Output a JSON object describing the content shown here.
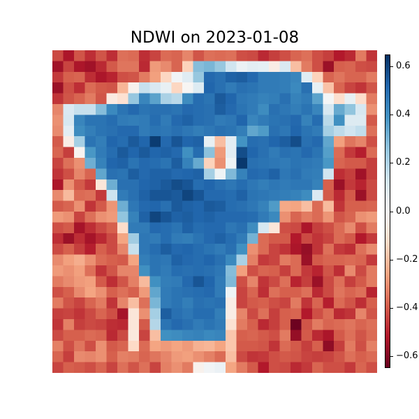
{
  "chart_data": {
    "type": "heatmap",
    "title": "NDWI on 2023-01-08",
    "colormap": "RdBu",
    "vmin": -0.65,
    "vmax": 0.65,
    "rows": 30,
    "cols": 30,
    "colorbar": {
      "ticks": [
        0.6,
        0.4,
        0.2,
        0.0,
        -0.2,
        -0.4,
        -0.6
      ],
      "tick_labels": [
        "0.6",
        "0.4",
        "0.2",
        "0.0",
        "−0.2",
        "−0.4",
        "−0.6"
      ]
    },
    "values": [
      [
        -0.43,
        -0.53,
        -0.41,
        -0.48,
        -0.41,
        -0.48,
        -0.36,
        -0.37,
        -0.48,
        -0.44,
        -0.37,
        -0.38,
        -0.32,
        -0.41,
        -0.36,
        -0.37,
        -0.36,
        -0.42,
        -0.43,
        -0.49,
        -0.45,
        -0.42,
        -0.38,
        -0.36,
        -0.42,
        -0.45,
        -0.52,
        -0.49,
        -0.34,
        -0.47
      ],
      [
        -0.55,
        -0.44,
        -0.53,
        -0.55,
        -0.49,
        -0.4,
        -0.35,
        -0.35,
        -0.49,
        -0.28,
        -0.31,
        -0.38,
        -0.15,
        0.28,
        0.3,
        0.25,
        0.13,
        0.04,
        0.07,
        0.06,
        -0.05,
        0.1,
        -0.2,
        -0.34,
        -0.42,
        -0.56,
        -0.39,
        -0.38,
        -0.42,
        -0.43
      ],
      [
        -0.46,
        -0.39,
        -0.38,
        -0.48,
        -0.53,
        -0.5,
        -0.42,
        -0.41,
        -0.34,
        -0.27,
        -0.14,
        0.02,
        0.08,
        0.25,
        0.51,
        0.49,
        0.53,
        0.54,
        0.51,
        0.46,
        0.46,
        0.45,
        0.43,
        0.08,
        -0.15,
        -0.38,
        -0.35,
        -0.38,
        -0.38,
        -0.34
      ],
      [
        -0.56,
        -0.42,
        -0.48,
        -0.37,
        -0.4,
        -0.41,
        -0.22,
        -0.03,
        0.15,
        0.1,
        0.05,
        -0.14,
        -0.01,
        0.09,
        0.52,
        0.49,
        0.46,
        0.49,
        0.48,
        0.46,
        0.46,
        0.45,
        0.42,
        0.49,
        0.05,
        -0.19,
        -0.38,
        -0.44,
        -0.47,
        -0.41
      ],
      [
        -0.47,
        -0.41,
        -0.38,
        -0.34,
        -0.41,
        -0.06,
        -0.1,
        0.25,
        0.43,
        0.35,
        0.21,
        0.18,
        0.41,
        0.5,
        0.48,
        0.55,
        0.52,
        0.47,
        0.46,
        0.44,
        0.45,
        0.49,
        0.44,
        0.46,
        0.35,
        0.01,
        -0.11,
        0.05,
        -0.12,
        -0.34
      ],
      [
        -0.32,
        0.1,
        0.15,
        0.15,
        0.28,
        0.42,
        0.48,
        0.51,
        0.48,
        0.49,
        0.49,
        0.48,
        0.51,
        0.5,
        0.49,
        0.54,
        0.51,
        0.48,
        0.46,
        0.41,
        0.49,
        0.47,
        0.45,
        0.48,
        0.43,
        0.11,
        0.33,
        0.26,
        0.11,
        -0.3
      ],
      [
        -0.3,
        0.11,
        0.43,
        0.48,
        0.48,
        0.5,
        0.46,
        0.45,
        0.46,
        0.5,
        0.46,
        0.51,
        0.53,
        0.5,
        0.49,
        0.46,
        0.47,
        0.52,
        0.43,
        0.46,
        0.48,
        0.49,
        0.51,
        0.44,
        0.5,
        0.18,
        0.4,
        0.09,
        0.09,
        -0.4
      ],
      [
        -0.31,
        0.07,
        0.41,
        0.45,
        0.48,
        0.49,
        0.51,
        0.51,
        0.46,
        0.48,
        0.47,
        0.49,
        0.47,
        0.45,
        0.47,
        0.49,
        0.48,
        0.45,
        0.34,
        0.37,
        0.49,
        0.47,
        0.52,
        0.48,
        0.46,
        0.22,
        0.17,
        0.13,
        0.16,
        -0.36
      ],
      [
        -0.4,
        -0.05,
        0.22,
        0.48,
        0.45,
        0.52,
        0.5,
        0.55,
        0.52,
        0.62,
        0.51,
        0.56,
        0.52,
        0.53,
        0.05,
        -0.2,
        0.07,
        0.39,
        0.5,
        0.49,
        0.52,
        0.54,
        0.58,
        0.49,
        0.51,
        0.34,
        -0.27,
        -0.35,
        -0.32,
        -0.42
      ],
      [
        -0.38,
        -0.45,
        -0.02,
        0.38,
        0.46,
        0.5,
        0.55,
        0.52,
        0.55,
        0.52,
        0.53,
        0.51,
        0.4,
        0.5,
        0.27,
        -0.28,
        0.07,
        0.58,
        0.52,
        0.49,
        0.46,
        0.49,
        0.48,
        0.51,
        0.48,
        0.36,
        -0.37,
        -0.46,
        -0.51,
        -0.37
      ],
      [
        -0.44,
        -0.36,
        -0.3,
        0.32,
        0.44,
        0.52,
        0.53,
        0.48,
        0.51,
        0.5,
        0.48,
        0.54,
        0.44,
        0.33,
        -0.15,
        -0.3,
        0.03,
        0.63,
        0.49,
        0.48,
        0.47,
        0.46,
        0.48,
        0.47,
        0.46,
        0.38,
        -0.38,
        -0.4,
        -0.4,
        -0.45
      ],
      [
        -0.47,
        -0.42,
        -0.32,
        -0.38,
        0.34,
        0.49,
        0.48,
        0.54,
        0.51,
        0.53,
        0.53,
        0.51,
        0.52,
        0.53,
        0.22,
        0.03,
        0.29,
        0.44,
        0.51,
        0.5,
        0.53,
        0.47,
        0.49,
        0.46,
        0.45,
        0.13,
        -0.48,
        -0.45,
        -0.55,
        -0.45
      ],
      [
        -0.53,
        -0.3,
        -0.4,
        -0.46,
        -0.08,
        0.32,
        0.49,
        0.49,
        0.52,
        0.53,
        0.55,
        0.58,
        0.56,
        0.5,
        0.52,
        0.49,
        0.47,
        0.5,
        0.47,
        0.45,
        0.47,
        0.46,
        0.47,
        0.47,
        0.44,
        -0.39,
        -0.56,
        -0.46,
        -0.5,
        -0.43
      ],
      [
        -0.31,
        -0.21,
        -0.37,
        -0.36,
        -0.46,
        0.14,
        0.46,
        0.49,
        0.53,
        0.56,
        0.56,
        0.55,
        0.6,
        0.56,
        0.51,
        0.51,
        0.5,
        0.53,
        0.48,
        0.47,
        0.46,
        0.45,
        0.44,
        0.41,
        0.1,
        -0.4,
        -0.49,
        -0.4,
        -0.56,
        -0.43
      ],
      [
        -0.4,
        -0.38,
        -0.3,
        -0.47,
        -0.4,
        -0.29,
        0.32,
        0.47,
        0.51,
        0.52,
        0.49,
        0.55,
        0.53,
        0.52,
        0.55,
        0.54,
        0.5,
        0.49,
        0.47,
        0.44,
        0.37,
        -0.25,
        -0.26,
        -0.2,
        -0.37,
        -0.21,
        -0.47,
        -0.39,
        -0.39,
        -0.38
      ],
      [
        -0.28,
        -0.3,
        -0.44,
        -0.36,
        -0.3,
        -0.28,
        0.26,
        0.44,
        0.53,
        0.6,
        0.56,
        0.53,
        0.54,
        0.52,
        0.53,
        0.51,
        0.51,
        0.51,
        0.5,
        0.46,
        0.42,
        -0.3,
        -0.38,
        -0.34,
        -0.37,
        -0.29,
        -0.41,
        -0.38,
        -0.3,
        -0.28
      ],
      [
        -0.42,
        -0.4,
        -0.54,
        -0.48,
        -0.43,
        -0.39,
        -0.12,
        0.46,
        0.46,
        0.51,
        0.5,
        0.48,
        0.53,
        0.5,
        0.51,
        0.51,
        0.47,
        0.49,
        0.41,
        0.11,
        -0.08,
        -0.42,
        -0.43,
        -0.53,
        -0.45,
        -0.42,
        -0.37,
        -0.31,
        -0.42,
        -0.34
      ],
      [
        -0.48,
        -0.56,
        -0.48,
        -0.54,
        -0.49,
        -0.43,
        -0.26,
        0.23,
        0.47,
        0.46,
        0.5,
        0.46,
        0.45,
        0.48,
        0.51,
        0.53,
        0.5,
        0.46,
        0.31,
        -0.37,
        -0.4,
        -0.4,
        -0.52,
        -0.43,
        -0.47,
        -0.44,
        -0.37,
        -0.4,
        -0.52,
        -0.46
      ],
      [
        -0.43,
        -0.39,
        -0.45,
        -0.51,
        -0.39,
        -0.43,
        -0.32,
        0.15,
        0.47,
        0.5,
        0.54,
        0.51,
        0.52,
        0.5,
        0.48,
        0.46,
        0.49,
        0.4,
        -0.3,
        -0.37,
        -0.44,
        -0.47,
        -0.53,
        -0.57,
        -0.47,
        -0.36,
        -0.46,
        -0.48,
        -0.36,
        -0.31
      ],
      [
        -0.31,
        -0.27,
        -0.24,
        -0.3,
        -0.37,
        -0.39,
        -0.4,
        -0.26,
        0.45,
        0.48,
        0.47,
        0.53,
        0.51,
        0.5,
        0.52,
        0.49,
        0.42,
        0.21,
        -0.33,
        -0.46,
        -0.44,
        -0.34,
        -0.37,
        -0.56,
        -0.4,
        -0.38,
        -0.38,
        -0.37,
        -0.38,
        -0.46
      ],
      [
        -0.28,
        -0.3,
        -0.27,
        -0.36,
        -0.47,
        -0.41,
        -0.32,
        -0.32,
        0.4,
        0.48,
        0.46,
        0.5,
        0.49,
        0.5,
        0.49,
        0.47,
        0.28,
        -0.27,
        -0.42,
        -0.38,
        -0.39,
        -0.45,
        -0.37,
        -0.46,
        -0.5,
        -0.41,
        -0.48,
        -0.31,
        -0.43,
        -0.34
      ],
      [
        -0.34,
        -0.31,
        -0.28,
        -0.27,
        -0.4,
        -0.48,
        -0.41,
        -0.33,
        -0.21,
        0.4,
        0.45,
        0.46,
        0.51,
        0.56,
        0.52,
        0.46,
        0.29,
        -0.42,
        -0.32,
        -0.47,
        -0.43,
        -0.36,
        -0.5,
        -0.45,
        -0.56,
        -0.43,
        -0.36,
        -0.45,
        -0.4,
        -0.34
      ],
      [
        -0.42,
        -0.39,
        -0.31,
        -0.26,
        -0.3,
        -0.39,
        -0.36,
        -0.39,
        -0.28,
        0.34,
        0.46,
        0.48,
        0.49,
        0.5,
        0.51,
        0.46,
        0.03,
        -0.44,
        -0.38,
        -0.48,
        -0.36,
        -0.39,
        -0.39,
        -0.36,
        -0.49,
        -0.43,
        -0.35,
        -0.38,
        -0.36,
        -0.5
      ],
      [
        -0.34,
        -0.41,
        -0.44,
        -0.38,
        -0.34,
        -0.47,
        -0.32,
        -0.2,
        -0.36,
        0.3,
        0.46,
        0.48,
        0.45,
        0.49,
        0.48,
        0.49,
        -0.05,
        -0.44,
        -0.4,
        -0.39,
        -0.42,
        -0.44,
        -0.34,
        -0.47,
        -0.38,
        -0.51,
        -0.37,
        -0.41,
        -0.48,
        -0.39
      ],
      [
        -0.45,
        -0.44,
        -0.47,
        -0.43,
        -0.38,
        -0.42,
        -0.54,
        -0.08,
        -0.3,
        0.22,
        0.54,
        0.49,
        0.47,
        0.5,
        0.5,
        0.45,
        -0.05,
        -0.32,
        -0.43,
        -0.36,
        -0.45,
        -0.39,
        -0.38,
        -0.52,
        -0.42,
        -0.37,
        -0.49,
        -0.47,
        -0.32,
        -0.41
      ],
      [
        -0.47,
        -0.33,
        -0.45,
        -0.43,
        -0.44,
        -0.48,
        -0.49,
        -0.08,
        -0.4,
        0.19,
        0.48,
        0.51,
        0.49,
        0.46,
        0.48,
        0.46,
        -0.1,
        -0.34,
        -0.39,
        -0.49,
        -0.45,
        -0.39,
        -0.64,
        -0.41,
        -0.34,
        -0.38,
        -0.37,
        -0.35,
        -0.38,
        -0.36
      ],
      [
        -0.43,
        -0.39,
        -0.39,
        -0.37,
        -0.38,
        -0.49,
        -0.43,
        -0.07,
        -0.44,
        -0.2,
        0.4,
        0.41,
        0.43,
        0.44,
        0.42,
        0.43,
        -0.18,
        -0.39,
        -0.38,
        -0.4,
        -0.42,
        -0.34,
        -0.57,
        -0.4,
        -0.49,
        -0.53,
        -0.4,
        -0.36,
        -0.41,
        -0.37
      ],
      [
        -0.33,
        -0.42,
        -0.35,
        -0.42,
        -0.3,
        -0.4,
        -0.38,
        -0.13,
        -0.37,
        -0.26,
        -0.28,
        -0.26,
        -0.28,
        -0.23,
        -0.22,
        -0.26,
        -0.18,
        -0.4,
        -0.4,
        -0.41,
        -0.47,
        -0.37,
        -0.4,
        -0.45,
        -0.39,
        -0.58,
        -0.45,
        -0.34,
        -0.42,
        -0.33
      ],
      [
        -0.38,
        -0.45,
        -0.31,
        -0.32,
        -0.3,
        -0.39,
        -0.33,
        -0.34,
        -0.38,
        -0.35,
        -0.32,
        -0.28,
        -0.27,
        -0.3,
        -0.33,
        -0.37,
        -0.2,
        -0.43,
        -0.47,
        -0.46,
        -0.42,
        -0.4,
        -0.41,
        -0.44,
        -0.45,
        -0.44,
        -0.41,
        -0.36,
        -0.39,
        -0.37
      ],
      [
        -0.44,
        -0.39,
        -0.4,
        -0.42,
        -0.38,
        -0.44,
        -0.36,
        -0.41,
        -0.36,
        -0.44,
        -0.33,
        -0.3,
        -0.34,
        -0.03,
        0.02,
        0.04,
        -0.26,
        -0.34,
        -0.4,
        -0.52,
        -0.42,
        -0.43,
        -0.49,
        -0.46,
        -0.38,
        -0.42,
        -0.42,
        -0.46,
        -0.38,
        -0.42
      ]
    ]
  }
}
